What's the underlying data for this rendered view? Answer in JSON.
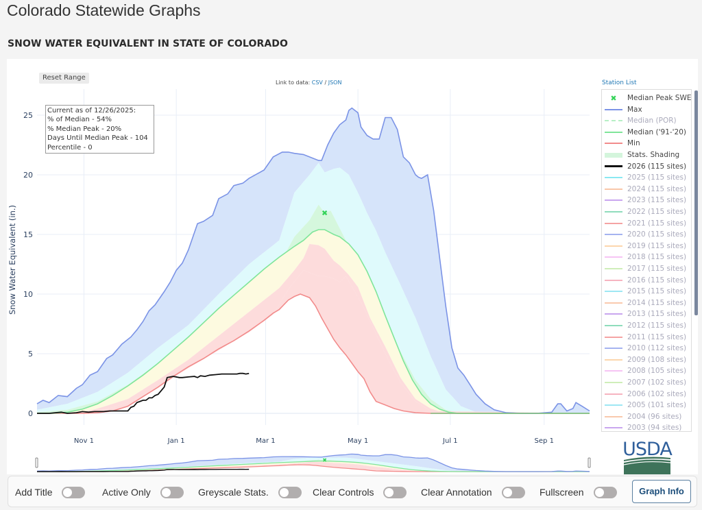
{
  "page": {
    "title": "Colorado Statewide Graphs",
    "section_title": "SNOW WATER EQUIVALENT IN STATE OF COLORADO"
  },
  "controls": {
    "reset_range": "Reset Range",
    "link_prefix": "Link to data:",
    "link_csv": "CSV",
    "link_sep": "/",
    "link_json": "JSON",
    "station_list": "Station List"
  },
  "annotation": {
    "lines": [
      "Current as of 12/26/2025:",
      "% of Median - 54%",
      "% Median Peak - 20%",
      "Days Until Median Peak - 104",
      "Percentile - 0"
    ]
  },
  "legend": {
    "items": [
      {
        "label": "Median Peak SWE",
        "kind": "marker",
        "color": "#35d359",
        "active": true
      },
      {
        "label": "Max",
        "kind": "line",
        "color": "#7b93e6",
        "active": true
      },
      {
        "label": "Median (POR)",
        "kind": "dash",
        "color": "#b7efc5",
        "active": false
      },
      {
        "label": "Median ('91-'20)",
        "kind": "line",
        "color": "#7fe59a",
        "active": true
      },
      {
        "label": "Min",
        "kind": "line",
        "color": "#f28b8b",
        "active": true
      },
      {
        "label": "Stats. Shading",
        "kind": "shade",
        "color": "#d4f5dc",
        "active": true
      },
      {
        "label": "2026 (115 sites)",
        "kind": "thick",
        "color": "#111111",
        "active": true
      },
      {
        "label": "2025 (115 sites)",
        "kind": "line",
        "color": "#8ae8f2",
        "active": false
      },
      {
        "label": "2024 (115 sites)",
        "kind": "line",
        "color": "#f9c6a8",
        "active": false
      },
      {
        "label": "2023 (115 sites)",
        "kind": "line",
        "color": "#c9a6ef",
        "active": false
      },
      {
        "label": "2022 (115 sites)",
        "kind": "line",
        "color": "#8fdcbc",
        "active": false
      },
      {
        "label": "2021 (115 sites)",
        "kind": "line",
        "color": "#f5a3a3",
        "active": false
      },
      {
        "label": "2020 (115 sites)",
        "kind": "line",
        "color": "#a5b3f0",
        "active": false
      },
      {
        "label": "2019 (115 sites)",
        "kind": "line",
        "color": "#fcd6ad",
        "active": false
      },
      {
        "label": "2018 (115 sites)",
        "kind": "line",
        "color": "#f6c4f4",
        "active": false
      },
      {
        "label": "2017 (115 sites)",
        "kind": "line",
        "color": "#cfeeb9",
        "active": false
      },
      {
        "label": "2016 (115 sites)",
        "kind": "line",
        "color": "#f6b3c0",
        "active": false
      },
      {
        "label": "2015 (115 sites)",
        "kind": "line",
        "color": "#9ee7f3",
        "active": false
      },
      {
        "label": "2014 (115 sites)",
        "kind": "line",
        "color": "#f9c9ad",
        "active": false
      },
      {
        "label": "2013 (115 sites)",
        "kind": "line",
        "color": "#c9a6ef",
        "active": false
      },
      {
        "label": "2012 (115 sites)",
        "kind": "line",
        "color": "#8fdcbc",
        "active": false
      },
      {
        "label": "2011 (115 sites)",
        "kind": "line",
        "color": "#f5a3a3",
        "active": false
      },
      {
        "label": "2010 (112 sites)",
        "kind": "line",
        "color": "#a5b3f0",
        "active": false
      },
      {
        "label": "2009 (108 sites)",
        "kind": "line",
        "color": "#fcd6ad",
        "active": false
      },
      {
        "label": "2008 (105 sites)",
        "kind": "line",
        "color": "#f6c4f4",
        "active": false
      },
      {
        "label": "2007 (102 sites)",
        "kind": "line",
        "color": "#cfeeb9",
        "active": false
      },
      {
        "label": "2006 (102 sites)",
        "kind": "line",
        "color": "#f6b3c0",
        "active": false
      },
      {
        "label": "2005 (101 sites)",
        "kind": "line",
        "color": "#9ee7f3",
        "active": false
      },
      {
        "label": "2004 (96 sites)",
        "kind": "line",
        "color": "#f9c9ad",
        "active": false
      },
      {
        "label": "2003 (94 sites)",
        "kind": "line",
        "color": "#c9a6ef",
        "active": false
      }
    ]
  },
  "toolbar": {
    "add_title": "Add Title",
    "active_only": "Active Only",
    "greyscale": "Greyscale Stats.",
    "clear_controls": "Clear Controls",
    "clear_annotation": "Clear Annotation",
    "fullscreen": "Fullscreen",
    "graph_info": "Graph Info"
  },
  "logo": {
    "text": "USDA"
  },
  "colors": {
    "max": "#7b93e6",
    "max_fill": "#d6e4fa",
    "p90_fill": "#dffafc",
    "p70_fill": "#d5f7dd",
    "p30_fill": "#fdfae0",
    "p10_fill": "#fddcdc",
    "median": "#7fe59a",
    "min": "#f28b8b",
    "current": "#111111",
    "peak_marker": "#35d359",
    "grid": "#e8eef7",
    "axis_text": "#2a3f5f"
  },
  "chart_data": {
    "type": "area",
    "title": "SNOW WATER EQUIVALENT IN STATE OF COLORADO",
    "xlabel": "",
    "ylabel": "Snow Water Equivalent (in.)",
    "x_units": "days since Oct 1",
    "xlim": [
      0,
      365
    ],
    "ylim": [
      -0.5,
      26.5
    ],
    "yticks": [
      0,
      5,
      10,
      15,
      20,
      25
    ],
    "xticks": [
      {
        "label": "Nov 1",
        "day": 31
      },
      {
        "label": "Jan 1",
        "day": 92
      },
      {
        "label": "Mar 1",
        "day": 151
      },
      {
        "label": "May 1",
        "day": 212
      },
      {
        "label": "Jul 1",
        "day": 273
      },
      {
        "label": "Sep 1",
        "day": 335
      }
    ],
    "grid": true,
    "legend_position": "right",
    "median_peak": {
      "day": 190,
      "value": 16.8,
      "label": "Median Peak SWE"
    },
    "series": [
      {
        "name": "Max",
        "x": [
          0,
          4,
          8,
          14,
          20,
          26,
          30,
          35,
          40,
          46,
          50,
          56,
          62,
          66,
          70,
          74,
          78,
          84,
          88,
          92,
          96,
          100,
          106,
          110,
          116,
          120,
          126,
          130,
          136,
          140,
          150,
          156,
          162,
          166,
          170,
          176,
          182,
          186,
          188,
          192,
          196,
          200,
          204,
          206,
          208,
          212,
          214,
          218,
          222,
          226,
          230,
          234,
          238,
          242,
          246,
          250,
          252,
          254,
          258,
          262,
          266,
          270,
          274,
          278,
          282,
          286,
          290,
          296,
          302,
          310,
          320,
          330,
          340,
          344,
          346,
          350,
          354,
          356,
          360,
          365
        ],
        "values": [
          0.8,
          1.1,
          0.9,
          1.5,
          1.4,
          2.1,
          2.4,
          3.2,
          3.5,
          4.6,
          4.9,
          5.8,
          6.4,
          7.0,
          7.7,
          8.6,
          9.1,
          10.2,
          11.0,
          12.0,
          12.6,
          13.7,
          15.9,
          16.1,
          16.6,
          18.0,
          18.4,
          19.1,
          19.3,
          19.7,
          20.4,
          21.5,
          21.9,
          21.9,
          21.8,
          21.7,
          21.4,
          21.2,
          21.2,
          22.5,
          23.5,
          24.2,
          24.6,
          25.4,
          25.6,
          25.2,
          24.0,
          23.3,
          23.0,
          23.0,
          24.8,
          24.8,
          23.8,
          21.5,
          21.0,
          20.0,
          19.8,
          19.7,
          20.0,
          17.0,
          13.0,
          9.0,
          5.5,
          3.8,
          3.2,
          2.4,
          1.6,
          0.8,
          0.3,
          0.05,
          0,
          0,
          0.1,
          0.8,
          0.8,
          0.2,
          0.4,
          0.9,
          0.6,
          0.2
        ]
      },
      {
        "name": "90th Percentile",
        "x": [
          0,
          20,
          40,
          60,
          80,
          100,
          120,
          140,
          160,
          170,
          180,
          186,
          190,
          196,
          200,
          206,
          212,
          218,
          224,
          230,
          240,
          250,
          260,
          270,
          280,
          290,
          300,
          365
        ],
        "values": [
          0.3,
          0.8,
          1.8,
          3.4,
          5.5,
          7.4,
          10.0,
          12.5,
          14.5,
          18.5,
          20.0,
          21.0,
          20.2,
          20.5,
          20.6,
          20.0,
          18.5,
          16.8,
          15.3,
          13.5,
          10.8,
          8.0,
          4.8,
          2.0,
          0.6,
          0.1,
          0,
          0
        ]
      },
      {
        "name": "70th Percentile",
        "x": [
          0,
          20,
          40,
          60,
          80,
          100,
          120,
          140,
          160,
          170,
          180,
          186,
          190,
          194,
          198,
          204,
          212,
          220,
          230,
          240,
          250,
          260,
          270,
          280,
          365
        ],
        "values": [
          0.1,
          0.3,
          1.0,
          2.4,
          4.2,
          6.2,
          8.5,
          10.6,
          12.5,
          14.8,
          16.2,
          17.5,
          16.8,
          17.0,
          16.0,
          14.5,
          12.8,
          10.8,
          8.0,
          5.2,
          2.8,
          1.2,
          0.3,
          0,
          0
        ]
      },
      {
        "name": "Median ('91-'20)",
        "x": [
          0,
          10,
          20,
          30,
          40,
          50,
          60,
          70,
          80,
          90,
          100,
          110,
          120,
          130,
          140,
          150,
          160,
          170,
          176,
          182,
          186,
          190,
          196,
          200,
          206,
          212,
          218,
          224,
          230,
          236,
          242,
          248,
          254,
          260,
          266,
          272,
          278,
          290,
          365
        ],
        "values": [
          0,
          0,
          0.1,
          0.35,
          0.8,
          1.5,
          2.3,
          3.2,
          4.2,
          5.3,
          6.4,
          7.6,
          8.8,
          9.9,
          11.0,
          12.1,
          13.1,
          14.0,
          14.5,
          15.2,
          15.4,
          15.4,
          15.0,
          14.8,
          14.2,
          13.3,
          11.9,
          10.2,
          8.2,
          6.3,
          4.4,
          2.8,
          1.6,
          0.8,
          0.35,
          0.1,
          0,
          0,
          0
        ]
      },
      {
        "name": "30th Percentile",
        "x": [
          0,
          30,
          40,
          60,
          80,
          100,
          120,
          140,
          160,
          170,
          176,
          180,
          186,
          190,
          196,
          200,
          206,
          212,
          220,
          230,
          240,
          250,
          260,
          270,
          365
        ],
        "values": [
          0,
          0.1,
          0.4,
          1.2,
          2.8,
          4.5,
          6.5,
          8.5,
          10.5,
          12.0,
          13.0,
          14.2,
          14.1,
          13.8,
          12.8,
          12.4,
          11.6,
          10.6,
          8.0,
          5.6,
          3.0,
          1.2,
          0.4,
          0,
          0
        ]
      },
      {
        "name": "10th Percentile",
        "x": [
          0,
          30,
          40,
          50,
          60,
          80,
          100,
          120,
          140,
          156,
          166,
          176,
          186,
          190,
          196,
          200,
          204,
          210,
          216,
          222,
          230,
          240,
          250,
          260,
          365
        ],
        "values": [
          0,
          0.05,
          0.2,
          0.5,
          0.9,
          2.2,
          3.8,
          5.3,
          6.8,
          8.3,
          10.4,
          12.0,
          11.5,
          11.5,
          11.3,
          11.0,
          11.5,
          10.2,
          8.8,
          7.2,
          5.0,
          2.6,
          1.0,
          0.2,
          0
        ]
      },
      {
        "name": "Min",
        "x": [
          0,
          30,
          40,
          50,
          60,
          70,
          80,
          90,
          100,
          110,
          120,
          130,
          140,
          150,
          156,
          160,
          166,
          170,
          174,
          176,
          180,
          184,
          188,
          192,
          196,
          200,
          204,
          208,
          212,
          216,
          220,
          224,
          230,
          236,
          242,
          250,
          260,
          270,
          365
        ],
        "values": [
          0,
          0,
          0.05,
          0.2,
          0.6,
          1.4,
          2.2,
          3.1,
          3.9,
          4.6,
          5.4,
          6.1,
          6.9,
          7.8,
          8.4,
          8.7,
          9.5,
          9.8,
          10.0,
          9.9,
          9.7,
          9.0,
          8.0,
          7.1,
          6.2,
          5.5,
          4.9,
          4.2,
          3.5,
          2.9,
          1.8,
          1.0,
          0.7,
          0.4,
          0.2,
          0.05,
          0,
          0,
          0
        ]
      },
      {
        "name": "2026 (115 sites)",
        "x": [
          0,
          8,
          12,
          16,
          20,
          26,
          30,
          34,
          38,
          44,
          48,
          52,
          56,
          60,
          62,
          64,
          66,
          68,
          70,
          72,
          74,
          76,
          78,
          80,
          84,
          86,
          90,
          94,
          96,
          100,
          104,
          106,
          108,
          111,
          114,
          118,
          122,
          126,
          130,
          132,
          134,
          136,
          138,
          140
        ],
        "values": [
          0,
          0,
          0.05,
          0.1,
          0,
          0.05,
          0.15,
          0.1,
          0.15,
          0.15,
          0.2,
          0.2,
          0.2,
          0.2,
          0.5,
          0.6,
          0.9,
          1.0,
          1.1,
          1.1,
          1.3,
          1.3,
          1.5,
          1.6,
          2.2,
          3.0,
          3.1,
          3.0,
          3.0,
          3.05,
          3.1,
          3.0,
          3.15,
          3.1,
          3.2,
          3.25,
          3.3,
          3.3,
          3.3,
          3.3,
          3.35,
          3.35,
          3.3,
          3.35
        ]
      }
    ]
  }
}
